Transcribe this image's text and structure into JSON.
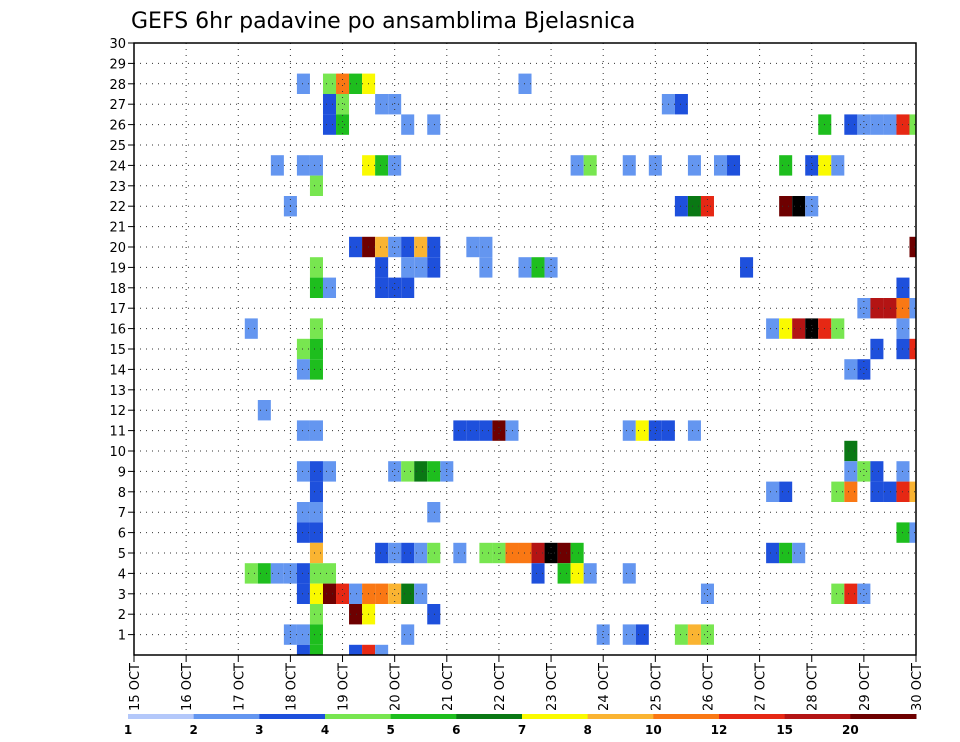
{
  "chart_data": {
    "type": "heatmap",
    "title": "GEFS 6hr padavine po ansamblima Bjelasnica",
    "xlabel": "",
    "ylabel": "",
    "x_tick_labels": [
      "15 OCT",
      "16 OCT",
      "17 OCT",
      "18 OCT",
      "19 OCT",
      "20 OCT",
      "21 OCT",
      "22 OCT",
      "23 OCT",
      "24 OCT",
      "25 OCT",
      "26 OCT",
      "27 OCT",
      "28 OCT",
      "29 OCT",
      "30 OCT"
    ],
    "y_tick_labels": [
      1,
      2,
      3,
      4,
      5,
      6,
      7,
      8,
      9,
      10,
      11,
      12,
      13,
      14,
      15,
      16,
      17,
      18,
      19,
      20,
      21,
      22,
      23,
      24,
      25,
      26,
      27,
      28,
      29,
      30
    ],
    "xlim": [
      0,
      60
    ],
    "ylim": [
      0,
      30
    ],
    "grid": true,
    "time_step": "6hr",
    "colorbar": {
      "levels": [
        1,
        2,
        3,
        4,
        5,
        6,
        7,
        8,
        10,
        12,
        15,
        20
      ],
      "labels": [
        "1",
        "2",
        "3",
        "4",
        "5",
        "6",
        "7",
        "8",
        "10",
        "12",
        "15",
        "20"
      ],
      "colors": [
        "#b4c8fa",
        "#6496f0",
        "#1e50dc",
        "#78e650",
        "#1ebe1e",
        "#0a7814",
        "#fafa00",
        "#fab432",
        "#fa7814",
        "#e62814",
        "#b41414",
        "#6e0000"
      ]
    },
    "cells": [
      [
        13,
        28,
        1
      ],
      [
        15,
        28,
        3
      ],
      [
        16,
        28,
        8
      ],
      [
        17,
        28,
        4
      ],
      [
        18,
        28,
        6
      ],
      [
        30,
        28,
        1
      ],
      [
        15,
        27,
        2
      ],
      [
        16,
        27,
        3
      ],
      [
        19,
        27,
        1
      ],
      [
        20,
        27,
        1
      ],
      [
        41,
        27,
        1
      ],
      [
        42,
        27,
        2
      ],
      [
        15,
        26,
        2
      ],
      [
        16,
        26,
        4
      ],
      [
        21,
        26,
        1
      ],
      [
        23,
        26,
        1
      ],
      [
        53,
        26,
        4
      ],
      [
        55,
        26,
        2
      ],
      [
        56,
        26,
        1
      ],
      [
        57,
        26,
        1
      ],
      [
        58,
        26,
        1
      ],
      [
        59,
        26,
        9
      ],
      [
        60,
        26,
        3
      ],
      [
        11,
        24,
        1
      ],
      [
        13,
        24,
        1
      ],
      [
        14,
        24,
        1
      ],
      [
        18,
        24,
        6
      ],
      [
        19,
        24,
        4
      ],
      [
        20,
        24,
        1
      ],
      [
        34,
        24,
        1
      ],
      [
        35,
        24,
        3
      ],
      [
        38,
        24,
        1
      ],
      [
        40,
        24,
        1
      ],
      [
        43,
        24,
        1
      ],
      [
        45,
        24,
        1
      ],
      [
        46,
        24,
        2
      ],
      [
        50,
        24,
        4
      ],
      [
        52,
        24,
        2
      ],
      [
        53,
        24,
        6
      ],
      [
        54,
        24,
        1
      ],
      [
        14,
        23,
        3
      ],
      [
        12,
        22,
        1
      ],
      [
        42,
        22,
        2
      ],
      [
        43,
        22,
        5
      ],
      [
        44,
        22,
        9
      ],
      [
        50,
        22,
        11
      ],
      [
        51,
        22,
        12
      ],
      [
        52,
        22,
        1
      ],
      [
        17,
        20,
        2
      ],
      [
        18,
        20,
        11
      ],
      [
        19,
        20,
        7
      ],
      [
        20,
        20,
        1
      ],
      [
        21,
        20,
        2
      ],
      [
        22,
        20,
        7
      ],
      [
        23,
        20,
        2
      ],
      [
        26,
        20,
        1
      ],
      [
        27,
        20,
        1
      ],
      [
        60,
        20,
        11
      ],
      [
        14,
        19,
        3
      ],
      [
        19,
        19,
        2
      ],
      [
        21,
        19,
        1
      ],
      [
        22,
        19,
        1
      ],
      [
        23,
        19,
        2
      ],
      [
        27,
        19,
        1
      ],
      [
        30,
        19,
        1
      ],
      [
        31,
        19,
        4
      ],
      [
        32,
        19,
        1
      ],
      [
        47,
        19,
        2
      ],
      [
        14,
        18,
        4
      ],
      [
        15,
        18,
        1
      ],
      [
        19,
        18,
        2
      ],
      [
        20,
        18,
        2
      ],
      [
        21,
        18,
        2
      ],
      [
        59,
        18,
        2
      ],
      [
        56,
        17,
        1
      ],
      [
        57,
        17,
        10
      ],
      [
        58,
        17,
        10
      ],
      [
        59,
        17,
        8
      ],
      [
        60,
        17,
        1
      ],
      [
        9,
        16,
        1
      ],
      [
        14,
        16,
        3
      ],
      [
        49,
        16,
        1
      ],
      [
        50,
        16,
        6
      ],
      [
        51,
        16,
        10
      ],
      [
        52,
        16,
        12
      ],
      [
        53,
        16,
        9
      ],
      [
        54,
        16,
        3
      ],
      [
        59,
        16,
        1
      ],
      [
        13,
        15,
        3
      ],
      [
        14,
        15,
        4
      ],
      [
        57,
        15,
        2
      ],
      [
        59,
        15,
        2
      ],
      [
        60,
        15,
        9
      ],
      [
        13,
        14,
        1
      ],
      [
        14,
        14,
        4
      ],
      [
        55,
        14,
        1
      ],
      [
        56,
        14,
        2
      ],
      [
        10,
        12,
        1
      ],
      [
        13,
        11,
        1
      ],
      [
        14,
        11,
        1
      ],
      [
        25,
        11,
        2
      ],
      [
        26,
        11,
        2
      ],
      [
        27,
        11,
        2
      ],
      [
        28,
        11,
        11
      ],
      [
        29,
        11,
        1
      ],
      [
        38,
        11,
        1
      ],
      [
        39,
        11,
        6
      ],
      [
        40,
        11,
        2
      ],
      [
        41,
        11,
        2
      ],
      [
        43,
        11,
        1
      ],
      [
        55,
        10,
        5
      ],
      [
        13,
        9,
        1
      ],
      [
        14,
        9,
        2
      ],
      [
        15,
        9,
        1
      ],
      [
        20,
        9,
        1
      ],
      [
        21,
        9,
        3
      ],
      [
        22,
        9,
        5
      ],
      [
        23,
        9,
        4
      ],
      [
        24,
        9,
        1
      ],
      [
        55,
        9,
        1
      ],
      [
        56,
        9,
        3
      ],
      [
        57,
        9,
        2
      ],
      [
        59,
        9,
        1
      ],
      [
        14,
        8,
        2
      ],
      [
        49,
        8,
        1
      ],
      [
        50,
        8,
        2
      ],
      [
        54,
        8,
        3
      ],
      [
        55,
        8,
        8
      ],
      [
        57,
        8,
        2
      ],
      [
        58,
        8,
        2
      ],
      [
        59,
        8,
        9
      ],
      [
        60,
        8,
        7
      ],
      [
        13,
        7,
        1
      ],
      [
        14,
        7,
        1
      ],
      [
        23,
        7,
        1
      ],
      [
        13,
        6,
        2
      ],
      [
        14,
        6,
        2
      ],
      [
        59,
        6,
        4
      ],
      [
        60,
        6,
        1
      ],
      [
        14,
        5,
        7
      ],
      [
        19,
        5,
        2
      ],
      [
        20,
        5,
        1
      ],
      [
        21,
        5,
        2
      ],
      [
        22,
        5,
        1
      ],
      [
        23,
        5,
        3
      ],
      [
        25,
        5,
        1
      ],
      [
        27,
        5,
        3
      ],
      [
        28,
        5,
        3
      ],
      [
        29,
        5,
        8
      ],
      [
        30,
        5,
        8
      ],
      [
        31,
        5,
        10
      ],
      [
        32,
        5,
        12
      ],
      [
        33,
        5,
        11
      ],
      [
        34,
        5,
        4
      ],
      [
        49,
        5,
        2
      ],
      [
        50,
        5,
        4
      ],
      [
        51,
        5,
        1
      ],
      [
        9,
        4,
        3
      ],
      [
        10,
        4,
        4
      ],
      [
        11,
        4,
        1
      ],
      [
        12,
        4,
        1
      ],
      [
        13,
        4,
        2
      ],
      [
        14,
        4,
        3
      ],
      [
        15,
        4,
        3
      ],
      [
        31,
        4,
        2
      ],
      [
        33,
        4,
        4
      ],
      [
        34,
        4,
        6
      ],
      [
        35,
        4,
        1
      ],
      [
        38,
        4,
        1
      ],
      [
        13,
        3,
        2
      ],
      [
        14,
        3,
        6
      ],
      [
        15,
        3,
        11
      ],
      [
        16,
        3,
        9
      ],
      [
        17,
        3,
        1
      ],
      [
        18,
        3,
        8
      ],
      [
        19,
        3,
        8
      ],
      [
        20,
        3,
        7
      ],
      [
        21,
        3,
        5
      ],
      [
        22,
        3,
        1
      ],
      [
        44,
        3,
        1
      ],
      [
        54,
        3,
        3
      ],
      [
        55,
        3,
        9
      ],
      [
        56,
        3,
        1
      ],
      [
        14,
        2,
        3
      ],
      [
        17,
        2,
        11
      ],
      [
        18,
        2,
        6
      ],
      [
        23,
        2,
        2
      ],
      [
        12,
        1,
        1
      ],
      [
        13,
        1,
        1
      ],
      [
        14,
        1,
        4
      ],
      [
        21,
        1,
        1
      ],
      [
        36,
        1,
        1
      ],
      [
        38,
        1,
        1
      ],
      [
        39,
        1,
        2
      ],
      [
        42,
        1,
        3
      ],
      [
        43,
        1,
        7
      ],
      [
        44,
        1,
        3
      ],
      [
        13,
        0,
        2
      ],
      [
        14,
        0,
        4
      ],
      [
        17,
        0,
        2
      ],
      [
        18,
        0,
        9
      ],
      [
        19,
        0,
        1
      ]
    ]
  }
}
